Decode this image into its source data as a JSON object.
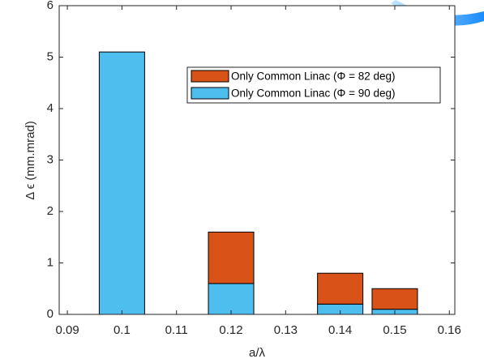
{
  "chart_data": {
    "type": "stacked_bar",
    "x_label": "a/λ",
    "y_label": "Δ ϵ (mm.mrad)",
    "x": [
      0.1,
      0.12,
      0.14,
      0.15
    ],
    "series": [
      {
        "name": "Only Common Linac (Φ = 90 deg)",
        "color": "#4dbeee",
        "values": [
          5.1,
          0.6,
          0.2,
          0.1
        ]
      },
      {
        "name": "Only Common Linac (Φ = 82 deg)",
        "color": "#d95319",
        "values": [
          0,
          1.0,
          0.6,
          0.4
        ]
      }
    ],
    "xlim": [
      0.0885,
      0.161
    ],
    "xticks": [
      0.09,
      0.1,
      0.11,
      0.12,
      0.13,
      0.14,
      0.15,
      0.16
    ],
    "ylim": [
      0,
      6
    ],
    "yticks": [
      0,
      1,
      2,
      3,
      4,
      5,
      6
    ],
    "grid": false,
    "legend": "top-right"
  }
}
